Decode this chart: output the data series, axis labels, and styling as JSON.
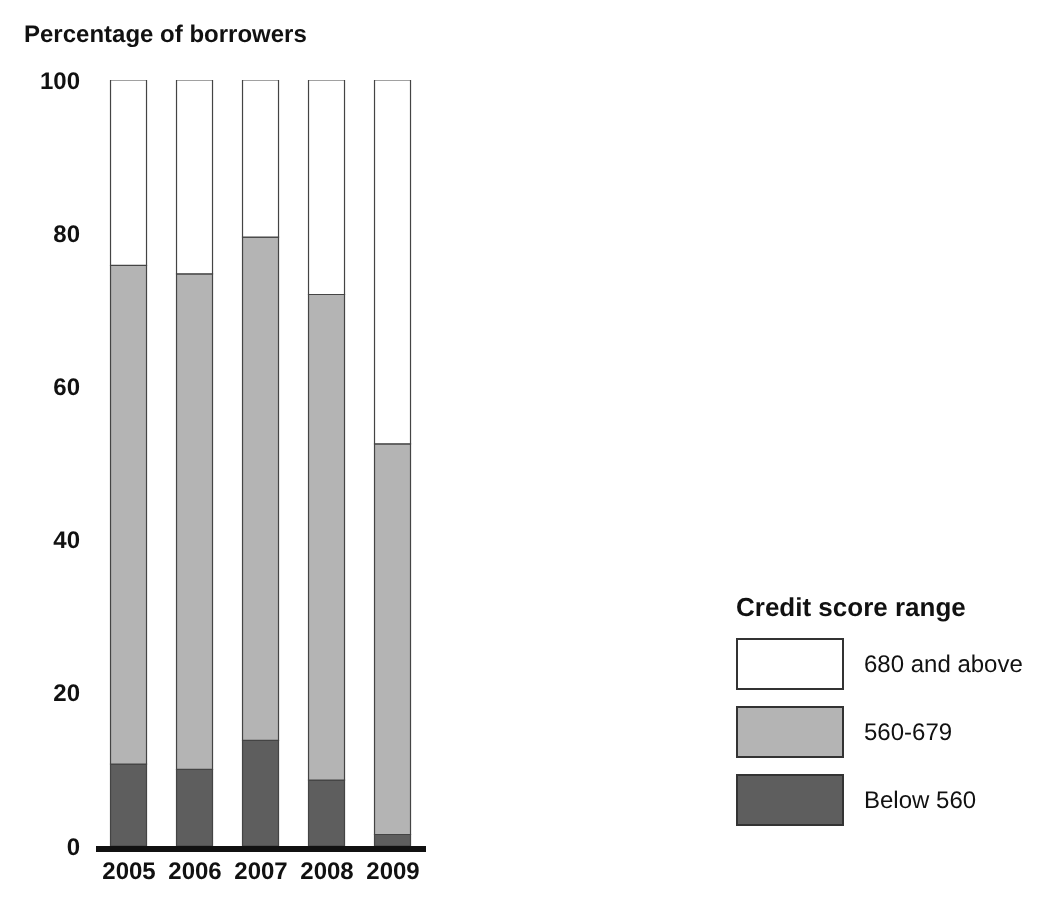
{
  "chart_data": {
    "type": "bar",
    "ylabel": "Percentage of borrowers",
    "legend_title": "Credit score range",
    "categories": [
      "2005",
      "2006",
      "2007",
      "2008",
      "2009"
    ],
    "stacked": true,
    "series": [
      {
        "name": "Below 560",
        "color": "#5e5e5e",
        "values": [
          10.7,
          10.0,
          13.8,
          8.6,
          1.5
        ]
      },
      {
        "name": "560-679",
        "color": "#b4b4b4",
        "values": [
          65.1,
          64.7,
          65.7,
          63.4,
          51.0
        ]
      },
      {
        "name": "680 and above",
        "color": "#ffffff",
        "values": [
          24.2,
          25.3,
          20.5,
          28.0,
          47.5
        ]
      }
    ],
    "ylim": [
      0,
      100
    ],
    "yticks": [
      0,
      20,
      40,
      60,
      80,
      100
    ],
    "grid": false,
    "legend": "bottom right"
  }
}
